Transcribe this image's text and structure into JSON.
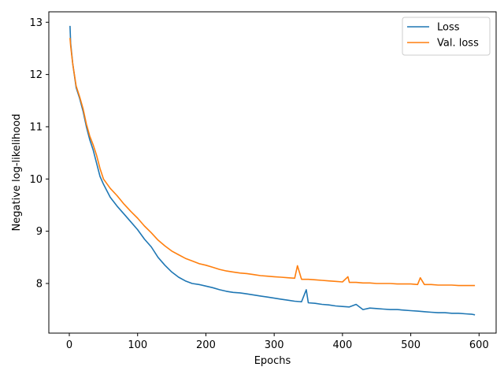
{
  "chart_data": {
    "type": "line",
    "title": "",
    "xlabel": "Epochs",
    "ylabel": "Negative log-likelihood",
    "xlim": [
      -30,
      625
    ],
    "ylim": [
      7.05,
      13.2
    ],
    "xticks": [
      0,
      100,
      200,
      300,
      400,
      500,
      600
    ],
    "yticks": [
      8,
      9,
      10,
      11,
      12,
      13
    ],
    "grid": false,
    "legend_position": "top-right",
    "series": [
      {
        "name": "Loss",
        "color": "#1f77b4",
        "x": [
          1,
          2,
          5,
          10,
          15,
          20,
          25,
          30,
          35,
          40,
          45,
          50,
          60,
          70,
          80,
          90,
          100,
          110,
          120,
          130,
          140,
          150,
          160,
          170,
          180,
          190,
          200,
          210,
          220,
          230,
          240,
          250,
          260,
          270,
          280,
          290,
          300,
          310,
          320,
          330,
          340,
          347,
          350,
          360,
          370,
          380,
          390,
          400,
          410,
          420,
          430,
          440,
          450,
          460,
          470,
          480,
          490,
          500,
          510,
          520,
          530,
          540,
          550,
          560,
          570,
          580,
          590,
          594
        ],
        "values": [
          12.93,
          12.6,
          12.2,
          11.75,
          11.55,
          11.3,
          11.0,
          10.75,
          10.55,
          10.3,
          10.05,
          9.9,
          9.65,
          9.48,
          9.33,
          9.18,
          9.03,
          8.85,
          8.7,
          8.5,
          8.35,
          8.22,
          8.12,
          8.05,
          8.0,
          7.98,
          7.95,
          7.92,
          7.88,
          7.85,
          7.83,
          7.82,
          7.8,
          7.78,
          7.76,
          7.74,
          7.72,
          7.7,
          7.68,
          7.66,
          7.65,
          7.88,
          7.63,
          7.62,
          7.6,
          7.59,
          7.57,
          7.56,
          7.55,
          7.6,
          7.5,
          7.53,
          7.52,
          7.51,
          7.5,
          7.5,
          7.49,
          7.48,
          7.47,
          7.46,
          7.45,
          7.44,
          7.44,
          7.43,
          7.43,
          7.42,
          7.41,
          7.4
        ]
      },
      {
        "name": "Val. loss",
        "color": "#ff7f0e",
        "x": [
          1,
          2,
          5,
          10,
          15,
          20,
          25,
          30,
          35,
          40,
          45,
          50,
          60,
          70,
          80,
          90,
          100,
          110,
          120,
          130,
          140,
          150,
          160,
          170,
          180,
          190,
          200,
          210,
          220,
          230,
          240,
          250,
          260,
          270,
          280,
          290,
          300,
          310,
          320,
          330,
          334,
          340,
          350,
          360,
          370,
          380,
          390,
          400,
          408,
          410,
          420,
          430,
          440,
          450,
          460,
          470,
          480,
          490,
          500,
          510,
          514,
          520,
          530,
          540,
          550,
          560,
          570,
          580,
          590,
          594
        ],
        "values": [
          12.7,
          12.55,
          12.2,
          11.78,
          11.58,
          11.35,
          11.05,
          10.82,
          10.65,
          10.45,
          10.2,
          10.0,
          9.82,
          9.68,
          9.52,
          9.38,
          9.25,
          9.1,
          8.97,
          8.83,
          8.72,
          8.62,
          8.55,
          8.48,
          8.43,
          8.38,
          8.35,
          8.31,
          8.27,
          8.24,
          8.22,
          8.2,
          8.19,
          8.17,
          8.15,
          8.14,
          8.13,
          8.12,
          8.11,
          8.1,
          8.34,
          8.08,
          8.08,
          8.07,
          8.06,
          8.05,
          8.04,
          8.03,
          8.13,
          8.02,
          8.02,
          8.01,
          8.01,
          8.0,
          8.0,
          8.0,
          7.99,
          7.99,
          7.99,
          7.98,
          8.11,
          7.98,
          7.98,
          7.97,
          7.97,
          7.97,
          7.96,
          7.96,
          7.96,
          7.96
        ]
      }
    ]
  }
}
